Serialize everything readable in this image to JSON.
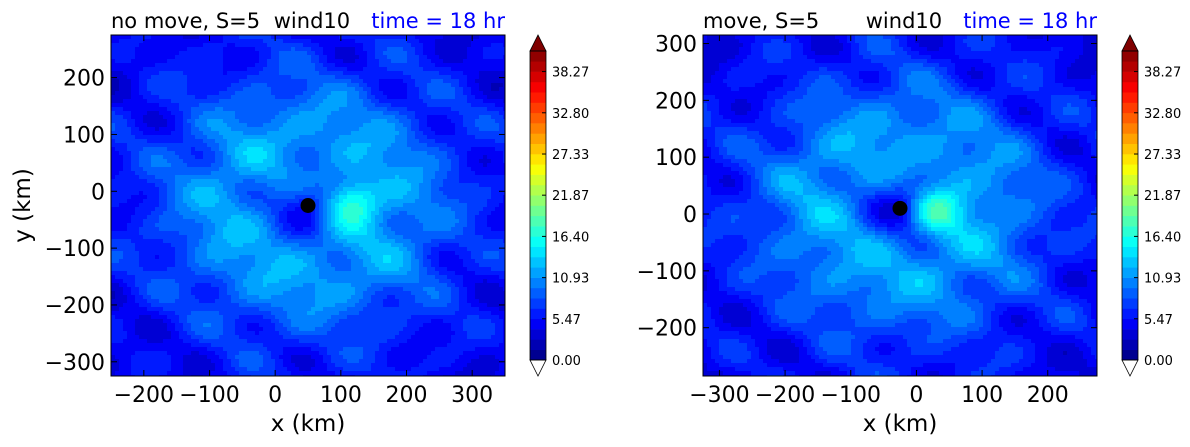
{
  "chart_data": [
    {
      "type": "heatmap",
      "title_left": "no move, S=5",
      "title_mid": "wind10",
      "title_right": "time = 18 hr",
      "xlabel": "x (km)",
      "ylabel": "y (km)",
      "xlim": [
        -250,
        350
      ],
      "ylim": [
        -325,
        275
      ],
      "xticks": [
        -200,
        -100,
        0,
        100,
        200,
        300
      ],
      "xtick_labels": [
        "−200",
        "−100",
        "0",
        "100",
        "200",
        "300"
      ],
      "yticks": [
        200,
        100,
        0,
        -100,
        -200,
        -300
      ],
      "ytick_labels": [
        "200",
        "100",
        "0",
        "−100",
        "−200",
        "−300"
      ],
      "center_marker": {
        "x": 50,
        "y": -25
      },
      "field_center": {
        "x": 50,
        "y": -25
      },
      "max_wind_location": {
        "x": 115,
        "y": -20
      },
      "colorbar": {
        "min": 0.0,
        "max": 41.0,
        "tick_labels": [
          "0.00",
          "5.47",
          "10.93",
          "16.40",
          "21.87",
          "27.33",
          "32.80",
          "38.27"
        ],
        "tick_values": [
          0.0,
          5.47,
          10.93,
          16.4,
          21.87,
          27.33,
          32.8,
          38.27
        ]
      }
    },
    {
      "type": "heatmap",
      "title_left": "move, S=5",
      "title_mid": "wind10",
      "title_right": "time = 18 hr",
      "xlabel": "x (km)",
      "ylabel": "",
      "xlim": [
        -325,
        275
      ],
      "ylim": [
        -285,
        315
      ],
      "xticks": [
        -300,
        -200,
        -100,
        0,
        100,
        200
      ],
      "xtick_labels": [
        "−300",
        "−200",
        "−100",
        "0",
        "100",
        "200"
      ],
      "yticks": [
        300,
        200,
        100,
        0,
        -100,
        -200
      ],
      "ytick_labels": [
        "300",
        "200",
        "100",
        "0",
        "−100",
        "−200"
      ],
      "center_marker": {
        "x": -25,
        "y": 10
      },
      "field_center": {
        "x": -25,
        "y": 10
      },
      "max_wind_location": {
        "x": 30,
        "y": 5
      },
      "colorbar": {
        "min": 0.0,
        "max": 41.0,
        "tick_labels": [
          "0.00",
          "5.47",
          "10.93",
          "16.40",
          "21.87",
          "27.33",
          "32.80",
          "38.27"
        ],
        "tick_values": [
          0.0,
          5.47,
          10.93,
          16.4,
          21.87,
          27.33,
          32.8,
          38.27
        ]
      }
    }
  ],
  "colors": {
    "title_left": "#ff0000",
    "title_mid": "#000000",
    "title_right": "#0000ff",
    "marker": "#000000"
  }
}
